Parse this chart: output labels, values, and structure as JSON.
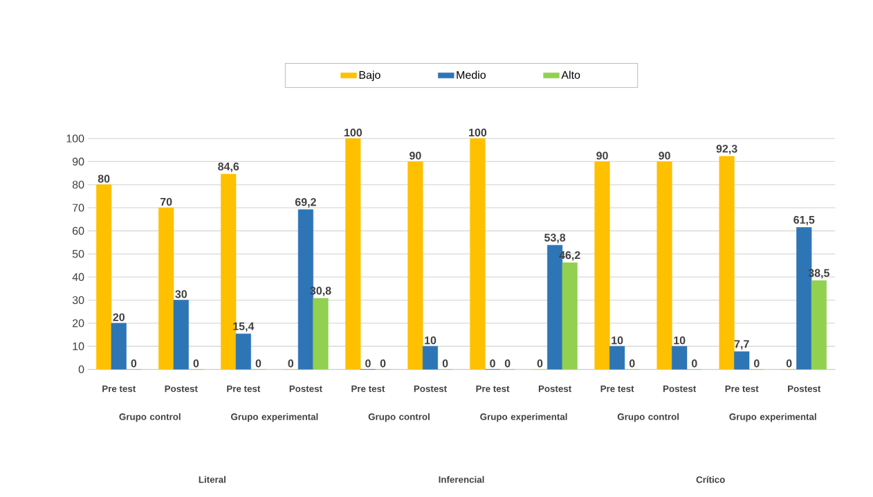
{
  "chart_data": {
    "type": "bar",
    "categories": [
      "Pre test",
      "Postest",
      "Pre test",
      "Postest",
      "Pre test",
      "Postest",
      "Pre test",
      "Postest",
      "Pre test",
      "Postest",
      "Pre test",
      "Postest"
    ],
    "series": [
      {
        "name": "Bajo",
        "color": "#ffc000",
        "values": [
          80,
          70,
          84.6,
          0,
          100,
          90,
          100,
          0,
          90,
          90,
          92.3,
          0
        ],
        "value_labels": [
          "80",
          "70",
          "84,6",
          "0",
          "100",
          "90",
          "100",
          "0",
          "90",
          "90",
          "92,3",
          "0"
        ]
      },
      {
        "name": "Medio",
        "color": "#2e75b6",
        "values": [
          20,
          30,
          15.4,
          69.2,
          0,
          10,
          0,
          53.8,
          10,
          10,
          7.7,
          61.5
        ],
        "value_labels": [
          "20",
          "30",
          "15,4",
          "69,2",
          "0",
          "10",
          "0",
          "53,8",
          "10",
          "10",
          "7,7",
          "61,5"
        ]
      },
      {
        "name": "Alto",
        "color": "#92d050",
        "values": [
          0,
          0,
          0,
          30.8,
          0,
          0,
          0,
          46.2,
          0,
          0,
          0,
          38.5
        ],
        "value_labels": [
          "0",
          "0",
          "0",
          "30,8",
          "0",
          "0",
          "0",
          "46,2",
          "0",
          "0",
          "0",
          "38,5"
        ]
      }
    ],
    "ylim": [
      0,
      100
    ],
    "yticks": [
      0,
      10,
      20,
      30,
      40,
      50,
      60,
      70,
      80,
      90,
      100
    ],
    "grid": "y",
    "legend": "top",
    "annotations": [
      "Grupo control",
      "Grupo experimental",
      "Grupo control",
      "Grupo experimental",
      "Grupo control",
      "Grupo experimental",
      "Literal",
      "Inferencial",
      "Crítico"
    ]
  }
}
